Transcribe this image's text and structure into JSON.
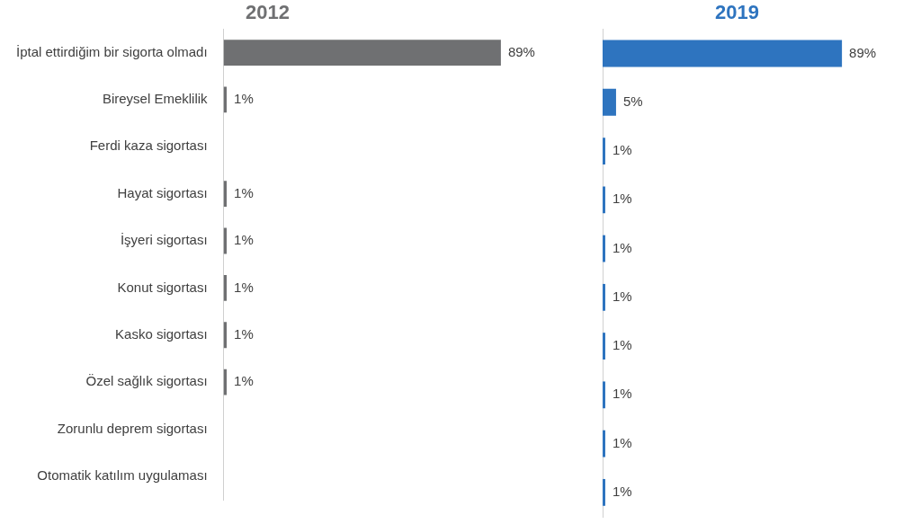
{
  "chart_data": [
    {
      "type": "bar",
      "orientation": "horizontal",
      "title": "2012",
      "categories": [
        "İptal ettirdiğim bir sigorta olmadı",
        "Bireysel Emeklilik",
        "Ferdi kaza sigortası",
        "Hayat sigortası",
        "İşyeri sigortası",
        "Konut sigortası",
        "Kasko sigortası",
        "Özel sağlık sigortası",
        "Zorunlu deprem sigortası",
        "Otomatik katılım uygulaması"
      ],
      "series": [
        {
          "color": "#6f7072",
          "values": [
            89,
            1,
            null,
            1,
            1,
            1,
            1,
            1,
            null,
            null
          ],
          "value_labels": [
            "89%",
            "1%",
            null,
            "1%",
            "1%",
            "1%",
            "1%",
            "1%",
            null,
            null
          ]
        }
      ],
      "grid": false,
      "legend": false,
      "tick_labels": "y"
    },
    {
      "type": "bar",
      "orientation": "horizontal",
      "title": "2019",
      "categories": [
        null,
        null,
        null,
        null,
        null,
        null,
        null,
        null,
        null,
        null
      ],
      "series": [
        {
          "color": "#2e74bf",
          "values": [
            89,
            5,
            1,
            1,
            1,
            1,
            1,
            1,
            1,
            1
          ],
          "value_labels": [
            "89%",
            "5%",
            "1%",
            "1%",
            "1%",
            "1%",
            "1%",
            "1%",
            "1%",
            "1%"
          ]
        }
      ],
      "grid": false,
      "legend": false,
      "tick_labels": false
    }
  ]
}
